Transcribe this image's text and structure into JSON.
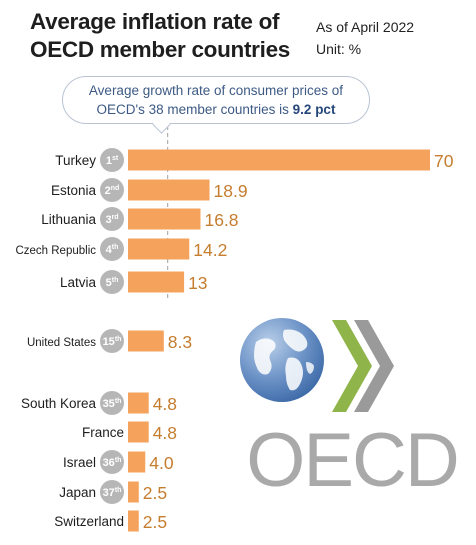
{
  "header": {
    "title_line1": "Average inflation rate of",
    "title_line2": "OECD member countries",
    "as_of": "As of April 2022",
    "unit": "Unit: %"
  },
  "callout": {
    "line1": "Average growth rate of consumer prices of",
    "line2_prefix": "OECD's 38 member countries is ",
    "line2_value": "9.2 pct",
    "average_value": 9.2
  },
  "logo": {
    "text": "OECD"
  },
  "colors": {
    "bar": "#f5a35c",
    "value_label": "#c57d2e",
    "rank_badge": "#b6b6b6",
    "average_line": "#a0a0a0",
    "logo_text": "#a9a9a9",
    "globe": "#4a77b6",
    "oecd_chevron_green": "#8fb54a",
    "oecd_chevron_gray": "#9a9a9a"
  },
  "chart_data": {
    "type": "bar",
    "orientation": "horizontal",
    "title": "Average inflation rate of OECD member countries",
    "unit": "%",
    "reference_line": 9.2,
    "categories": [
      "Turkey",
      "Estonia",
      "Lithuania",
      "Czech Republic",
      "Latvia",
      "United States",
      "South Korea",
      "France",
      "Israel",
      "Japan",
      "Switzerland"
    ],
    "ranks": [
      "1st",
      "2nd",
      "3rd",
      "4th",
      "5th",
      "15th",
      "35th",
      "",
      "36th",
      "37th",
      ""
    ],
    "values": [
      70,
      18.9,
      16.8,
      14.2,
      13,
      8.3,
      4.8,
      4.8,
      4.0,
      2.5,
      2.5
    ],
    "value_labels": [
      "70",
      "18.9",
      "16.8",
      "14.2",
      "13",
      "8.3",
      "4.8",
      "4.8",
      "4.0",
      "2.5",
      "2.5"
    ],
    "xlim": [
      0,
      70
    ]
  }
}
